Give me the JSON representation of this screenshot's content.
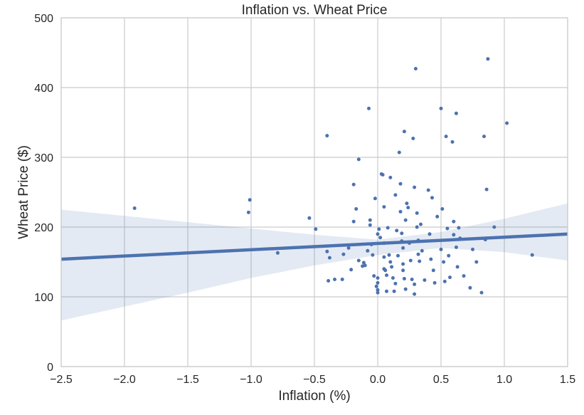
{
  "chart_data": {
    "type": "scatter",
    "title": "Inflation vs. Wheat Price",
    "xlabel": "Inflation (%)",
    "ylabel": "Wheat Price ($)",
    "xlim": [
      -2.5,
      1.5
    ],
    "ylim": [
      0,
      500
    ],
    "xticks": [
      -2.5,
      -2.0,
      -1.5,
      -1.0,
      -0.5,
      0.0,
      0.5,
      1.0,
      1.5
    ],
    "xtick_labels": [
      "−2.5",
      "−2.0",
      "−1.5",
      "−1.0",
      "−0.5",
      "0.0",
      "0.5",
      "1.0",
      "1.5"
    ],
    "yticks": [
      0,
      100,
      200,
      300,
      400,
      500
    ],
    "ytick_labels": [
      "0",
      "100",
      "200",
      "300",
      "400",
      "500"
    ],
    "grid": true,
    "colors": {
      "point": "#4c72b0",
      "line": "#4c72b0",
      "band": "#4c72b0",
      "grid": "#cbcbcb",
      "frame": "#cbcbcb"
    },
    "regression": {
      "x": [
        -2.5,
        1.5
      ],
      "y": [
        154,
        190
      ]
    },
    "confidence_band": {
      "x": [
        -2.5,
        -2.0,
        -1.5,
        -1.0,
        -0.5,
        0.0,
        0.5,
        1.0,
        1.5
      ],
      "upper": [
        225,
        216,
        207,
        198,
        189,
        182,
        193,
        212,
        234
      ],
      "lower": [
        66,
        86,
        106,
        127,
        145,
        160,
        170,
        164,
        152
      ]
    },
    "points": [
      [
        -1.92,
        227
      ],
      [
        -1.02,
        221
      ],
      [
        -1.01,
        239
      ],
      [
        -0.79,
        163
      ],
      [
        -0.54,
        213
      ],
      [
        -0.49,
        197
      ],
      [
        -0.4,
        331
      ],
      [
        -0.4,
        165
      ],
      [
        -0.38,
        156
      ],
      [
        -0.39,
        123
      ],
      [
        -0.34,
        125
      ],
      [
        -0.28,
        125
      ],
      [
        -0.27,
        161
      ],
      [
        -0.23,
        170
      ],
      [
        -0.21,
        139
      ],
      [
        -0.19,
        261
      ],
      [
        -0.19,
        208
      ],
      [
        -0.17,
        226
      ],
      [
        -0.15,
        297
      ],
      [
        -0.15,
        152
      ],
      [
        -0.12,
        144
      ],
      [
        -0.11,
        149
      ],
      [
        -0.1,
        145
      ],
      [
        -0.08,
        166
      ],
      [
        -0.07,
        370
      ],
      [
        -0.06,
        210
      ],
      [
        -0.06,
        203
      ],
      [
        -0.05,
        175
      ],
      [
        -0.04,
        160
      ],
      [
        -0.03,
        130
      ],
      [
        -0.02,
        241
      ],
      [
        -0.01,
        115
      ],
      [
        0.0,
        127
      ],
      [
        0.0,
        106
      ],
      [
        0.0,
        110
      ],
      [
        0.0,
        120
      ],
      [
        0.0,
        190
      ],
      [
        0.01,
        197
      ],
      [
        0.02,
        185
      ],
      [
        0.03,
        276
      ],
      [
        0.04,
        275
      ],
      [
        0.05,
        229
      ],
      [
        0.05,
        177
      ],
      [
        0.05,
        157
      ],
      [
        0.05,
        140
      ],
      [
        0.06,
        138
      ],
      [
        0.07,
        131
      ],
      [
        0.07,
        108
      ],
      [
        0.08,
        199
      ],
      [
        0.09,
        160
      ],
      [
        0.1,
        271
      ],
      [
        0.1,
        150
      ],
      [
        0.11,
        143
      ],
      [
        0.12,
        127
      ],
      [
        0.13,
        108
      ],
      [
        0.14,
        246
      ],
      [
        0.14,
        119
      ],
      [
        0.15,
        195
      ],
      [
        0.16,
        159
      ],
      [
        0.17,
        307
      ],
      [
        0.18,
        262
      ],
      [
        0.18,
        222
      ],
      [
        0.19,
        191
      ],
      [
        0.19,
        180
      ],
      [
        0.2,
        170
      ],
      [
        0.2,
        147
      ],
      [
        0.2,
        138
      ],
      [
        0.21,
        126
      ],
      [
        0.21,
        337
      ],
      [
        0.22,
        210
      ],
      [
        0.22,
        111
      ],
      [
        0.23,
        234
      ],
      [
        0.24,
        228
      ],
      [
        0.25,
        177
      ],
      [
        0.26,
        152
      ],
      [
        0.27,
        125
      ],
      [
        0.28,
        327
      ],
      [
        0.29,
        257
      ],
      [
        0.29,
        118
      ],
      [
        0.29,
        104
      ],
      [
        0.3,
        427
      ],
      [
        0.31,
        220
      ],
      [
        0.31,
        200
      ],
      [
        0.32,
        181
      ],
      [
        0.32,
        161
      ],
      [
        0.33,
        151
      ],
      [
        0.34,
        204
      ],
      [
        0.35,
        166
      ],
      [
        0.37,
        124
      ],
      [
        0.4,
        253
      ],
      [
        0.41,
        190
      ],
      [
        0.42,
        154
      ],
      [
        0.43,
        242
      ],
      [
        0.44,
        138
      ],
      [
        0.45,
        120
      ],
      [
        0.47,
        215
      ],
      [
        0.5,
        370
      ],
      [
        0.5,
        168
      ],
      [
        0.51,
        226
      ],
      [
        0.52,
        150
      ],
      [
        0.53,
        122
      ],
      [
        0.54,
        330
      ],
      [
        0.55,
        198
      ],
      [
        0.56,
        159
      ],
      [
        0.57,
        128
      ],
      [
        0.59,
        322
      ],
      [
        0.6,
        208
      ],
      [
        0.6,
        189
      ],
      [
        0.62,
        363
      ],
      [
        0.62,
        171
      ],
      [
        0.63,
        143
      ],
      [
        0.64,
        199
      ],
      [
        0.65,
        184
      ],
      [
        0.68,
        130
      ],
      [
        0.73,
        113
      ],
      [
        0.75,
        168
      ],
      [
        0.78,
        150
      ],
      [
        0.82,
        106
      ],
      [
        0.84,
        330
      ],
      [
        0.85,
        182
      ],
      [
        0.86,
        254
      ],
      [
        0.87,
        441
      ],
      [
        0.92,
        200
      ],
      [
        1.02,
        349
      ],
      [
        1.22,
        160
      ]
    ]
  }
}
